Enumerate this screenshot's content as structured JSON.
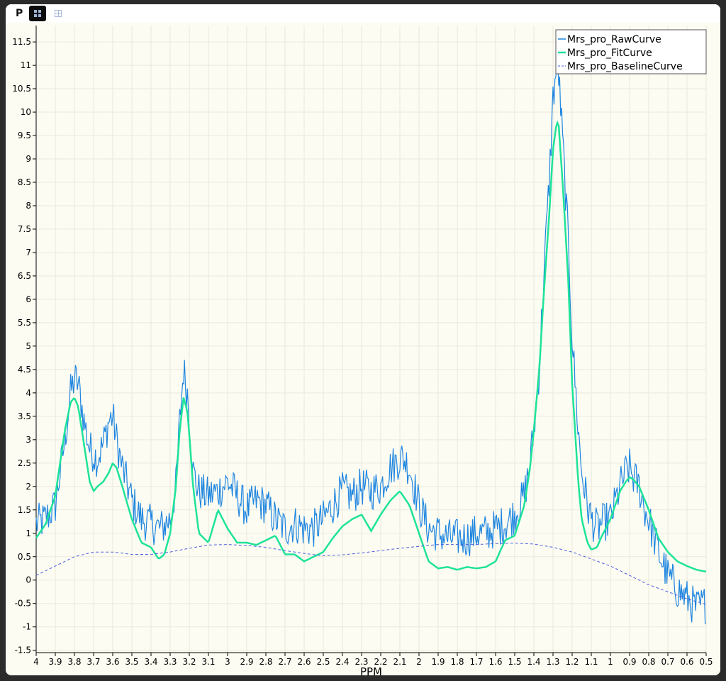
{
  "toolbar": {
    "label": "P",
    "buttons": [
      {
        "icon": "single-view-icon",
        "active": true
      },
      {
        "icon": "split-view-icon",
        "active": false
      }
    ]
  },
  "chart_data": {
    "type": "line",
    "xlabel": "PPM",
    "ylabel": "",
    "title": "",
    "x_reversed": true,
    "xlim": [
      4,
      0.5
    ],
    "ylim": [
      -1.55,
      11.85
    ],
    "grid": true,
    "legend_position": "top-right",
    "x_ticks": [
      "4",
      "3.9",
      "3.8",
      "3.7",
      "3.6",
      "3.5",
      "3.4",
      "3.3",
      "3.2",
      "3.1",
      "3",
      "2.9",
      "2.8",
      "2.7",
      "2.6",
      "2.5",
      "2.4",
      "2.3",
      "2.2",
      "2.1",
      "2",
      "1.9",
      "1.8",
      "1.7",
      "1.6",
      "1.5",
      "1.4",
      "1.3",
      "1.2",
      "1.1",
      "1",
      "0.9",
      "0.8",
      "0.7",
      "0.6",
      "0.5"
    ],
    "y_ticks": [
      "11.5",
      "11",
      "10.5",
      "10",
      "9.5",
      "9",
      "8.5",
      "8",
      "7.5",
      "7",
      "6.5",
      "6",
      "5.5",
      "5",
      "4.5",
      "4",
      "3.5",
      "3",
      "2.5",
      "2",
      "1.5",
      "1",
      "0.5",
      "0",
      "-0.5",
      "-1",
      "-1.5"
    ],
    "series": [
      {
        "name": "Mrs_pro_RawCurve",
        "color": "#1f86e0",
        "style": "solid",
        "x": [
          4.0,
          3.95,
          3.9,
          3.85,
          3.82,
          3.8,
          3.78,
          3.75,
          3.72,
          3.7,
          3.68,
          3.65,
          3.62,
          3.6,
          3.58,
          3.55,
          3.5,
          3.45,
          3.4,
          3.35,
          3.3,
          3.27,
          3.25,
          3.23,
          3.21,
          3.2,
          3.18,
          3.15,
          3.1,
          3.05,
          3.0,
          2.95,
          2.9,
          2.85,
          2.8,
          2.75,
          2.7,
          2.65,
          2.6,
          2.55,
          2.5,
          2.45,
          2.4,
          2.35,
          2.3,
          2.25,
          2.2,
          2.15,
          2.1,
          2.08,
          2.05,
          2.0,
          1.95,
          1.9,
          1.85,
          1.8,
          1.75,
          1.7,
          1.65,
          1.6,
          1.55,
          1.5,
          1.45,
          1.42,
          1.4,
          1.37,
          1.35,
          1.32,
          1.3,
          1.28,
          1.27,
          1.25,
          1.22,
          1.2,
          1.17,
          1.15,
          1.12,
          1.1,
          1.07,
          1.05,
          1.0,
          0.95,
          0.92,
          0.9,
          0.88,
          0.85,
          0.82,
          0.8,
          0.75,
          0.7,
          0.65,
          0.6,
          0.55,
          0.5
        ],
        "y": [
          1.2,
          1.3,
          1.6,
          3.0,
          4.0,
          4.3,
          4.2,
          3.4,
          2.8,
          2.7,
          2.6,
          2.9,
          3.4,
          3.5,
          3.0,
          2.4,
          1.7,
          1.3,
          1.2,
          1.1,
          1.3,
          2.0,
          3.4,
          4.5,
          4.0,
          3.5,
          2.3,
          1.9,
          1.8,
          1.9,
          2.1,
          1.8,
          1.5,
          1.7,
          1.6,
          1.3,
          1.1,
          1.2,
          1.1,
          1.1,
          1.3,
          1.6,
          1.9,
          1.8,
          2.0,
          1.9,
          2.0,
          2.4,
          2.6,
          2.6,
          2.4,
          1.6,
          1.1,
          1.0,
          0.9,
          0.9,
          0.9,
          1.0,
          1.0,
          1.1,
          1.2,
          1.4,
          1.8,
          2.5,
          3.2,
          4.6,
          6.4,
          8.5,
          10.3,
          11.0,
          10.8,
          9.4,
          7.2,
          5.2,
          3.3,
          2.3,
          1.6,
          1.3,
          1.1,
          1.2,
          1.3,
          2.0,
          2.3,
          2.4,
          2.2,
          2.0,
          1.5,
          1.3,
          0.6,
          0.1,
          -0.2,
          -0.4,
          -0.6,
          -0.5
        ]
      },
      {
        "name": "Mrs_pro_FitCurve",
        "color": "#1ee39a",
        "style": "solid",
        "x": [
          4.0,
          3.95,
          3.9,
          3.85,
          3.82,
          3.8,
          3.78,
          3.75,
          3.72,
          3.7,
          3.68,
          3.65,
          3.62,
          3.6,
          3.58,
          3.55,
          3.5,
          3.45,
          3.4,
          3.36,
          3.33,
          3.3,
          3.27,
          3.25,
          3.23,
          3.21,
          3.2,
          3.18,
          3.15,
          3.1,
          3.05,
          3.0,
          2.95,
          2.9,
          2.85,
          2.8,
          2.75,
          2.7,
          2.65,
          2.6,
          2.55,
          2.5,
          2.45,
          2.4,
          2.35,
          2.3,
          2.25,
          2.2,
          2.15,
          2.1,
          2.05,
          2.0,
          1.95,
          1.9,
          1.85,
          1.8,
          1.75,
          1.7,
          1.65,
          1.6,
          1.55,
          1.5,
          1.45,
          1.42,
          1.4,
          1.37,
          1.35,
          1.32,
          1.3,
          1.28,
          1.27,
          1.25,
          1.22,
          1.2,
          1.17,
          1.15,
          1.12,
          1.1,
          1.07,
          1.05,
          1.0,
          0.95,
          0.92,
          0.9,
          0.88,
          0.85,
          0.8,
          0.75,
          0.7,
          0.65,
          0.6,
          0.55,
          0.5
        ],
        "y": [
          0.9,
          1.2,
          1.8,
          3.2,
          3.8,
          3.9,
          3.7,
          2.9,
          2.1,
          1.9,
          2.0,
          2.1,
          2.3,
          2.5,
          2.4,
          2.0,
          1.3,
          0.8,
          0.7,
          0.45,
          0.55,
          1.0,
          2.0,
          3.2,
          3.9,
          3.6,
          3.1,
          2.0,
          1.0,
          0.8,
          1.5,
          1.1,
          0.8,
          0.8,
          0.75,
          0.85,
          0.95,
          0.55,
          0.55,
          0.4,
          0.5,
          0.6,
          0.9,
          1.15,
          1.3,
          1.4,
          1.05,
          1.4,
          1.7,
          1.9,
          1.6,
          1.0,
          0.4,
          0.25,
          0.28,
          0.22,
          0.28,
          0.25,
          0.28,
          0.4,
          0.85,
          0.95,
          1.6,
          2.4,
          3.2,
          4.6,
          6.0,
          7.8,
          9.2,
          9.8,
          9.7,
          8.5,
          6.4,
          4.2,
          2.2,
          1.3,
          0.8,
          0.65,
          0.7,
          0.9,
          1.3,
          1.9,
          2.1,
          2.2,
          2.15,
          2.0,
          1.5,
          0.9,
          0.6,
          0.4,
          0.3,
          0.22,
          0.18
        ]
      },
      {
        "name": "Mrs_pro_BaselineCurve",
        "color": "#4a5fe0",
        "style": "dashed",
        "x": [
          4.0,
          3.9,
          3.8,
          3.7,
          3.6,
          3.5,
          3.4,
          3.3,
          3.2,
          3.1,
          3.0,
          2.9,
          2.8,
          2.7,
          2.6,
          2.5,
          2.4,
          2.3,
          2.2,
          2.1,
          2.0,
          1.9,
          1.8,
          1.7,
          1.6,
          1.5,
          1.4,
          1.3,
          1.2,
          1.1,
          1.0,
          0.9,
          0.8,
          0.7,
          0.6,
          0.5
        ],
        "y": [
          0.1,
          0.3,
          0.5,
          0.6,
          0.6,
          0.55,
          0.55,
          0.6,
          0.68,
          0.75,
          0.76,
          0.74,
          0.7,
          0.63,
          0.57,
          0.52,
          0.54,
          0.58,
          0.63,
          0.68,
          0.72,
          0.76,
          0.76,
          0.76,
          0.78,
          0.79,
          0.77,
          0.7,
          0.6,
          0.45,
          0.3,
          0.1,
          -0.1,
          -0.25,
          -0.4,
          -0.52
        ]
      }
    ]
  }
}
